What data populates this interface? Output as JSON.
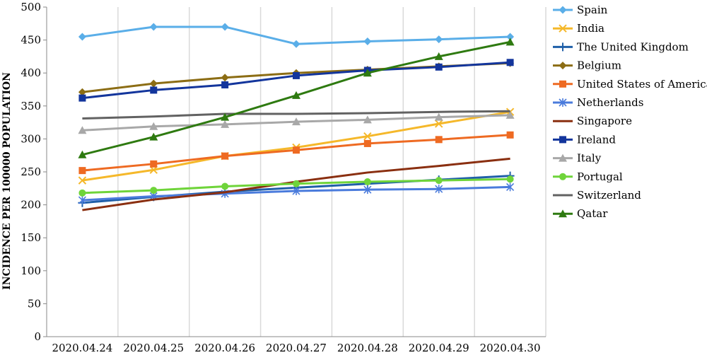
{
  "chart_data": {
    "type": "line",
    "title": "",
    "xlabel": "",
    "ylabel": "INCIDENCE PER 100000 POPULATION",
    "categories": [
      "2020.04.24",
      "2020.04.25",
      "2020.04.26",
      "2020.04.27",
      "2020.04.28",
      "2020.04.29",
      "2020.04.30"
    ],
    "ylim": [
      0,
      500
    ],
    "yticks": [
      0,
      50,
      100,
      150,
      200,
      250,
      300,
      350,
      400,
      450,
      500
    ],
    "grid": "vertical",
    "legend_position": "right",
    "series": [
      {
        "name": "Spain",
        "color": "#5aaee8",
        "marker": "diamond",
        "values": [
          455,
          470,
          470,
          444,
          448,
          451,
          455
        ]
      },
      {
        "name": "India",
        "color": "#f5b82a",
        "marker": "x",
        "values": [
          237,
          253,
          274,
          287,
          304,
          323,
          341
        ]
      },
      {
        "name": "The United Kingdom",
        "color": "#1f5fa8",
        "marker": "plus",
        "values": [
          203,
          212,
          220,
          226,
          232,
          238,
          244
        ]
      },
      {
        "name": "Belgium",
        "color": "#8c6d14",
        "marker": "diamond",
        "values": [
          371,
          384,
          393,
          400,
          405,
          410,
          415
        ]
      },
      {
        "name": "United States of America",
        "color": "#ee6a22",
        "marker": "square",
        "values": [
          252,
          262,
          274,
          283,
          293,
          299,
          306
        ]
      },
      {
        "name": "Netherlands",
        "color": "#4a7bdc",
        "marker": "asterisk",
        "values": [
          207,
          213,
          217,
          221,
          223,
          224,
          227
        ]
      },
      {
        "name": "Singapore",
        "color": "#8a2f10",
        "marker": "none",
        "values": [
          192,
          208,
          219,
          235,
          249,
          259,
          270
        ]
      },
      {
        "name": "Ireland",
        "color": "#13359c",
        "marker": "square",
        "values": [
          362,
          374,
          382,
          396,
          404,
          409,
          416
        ]
      },
      {
        "name": "Italy",
        "color": "#a8a8a8",
        "marker": "triangle",
        "values": [
          313,
          319,
          322,
          326,
          329,
          333,
          336
        ]
      },
      {
        "name": "Portugal",
        "color": "#6fd43a",
        "marker": "circle",
        "values": [
          218,
          222,
          228,
          232,
          235,
          237,
          239
        ]
      },
      {
        "name": "Switzerland",
        "color": "#626262",
        "marker": "none",
        "values": [
          331,
          334,
          338,
          338,
          339,
          341,
          342
        ]
      },
      {
        "name": "Qatar",
        "color": "#2e7a10",
        "marker": "triangle",
        "values": [
          276,
          303,
          333,
          366,
          400,
          425,
          447
        ]
      }
    ]
  }
}
